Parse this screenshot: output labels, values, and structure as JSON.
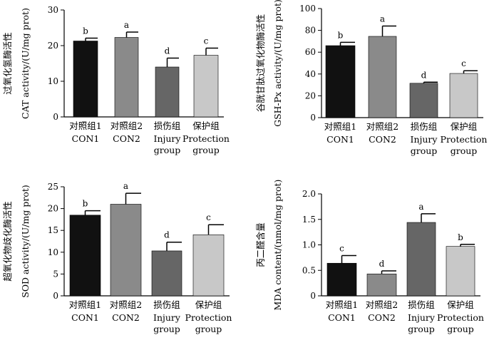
{
  "chart_data": [
    {
      "type": "bar",
      "title": "",
      "ylabel_cn": "过氧化氢酶活性",
      "ylabel_en": "CAT activity/(U/mg prot)",
      "ylim": [
        0,
        30
      ],
      "yticks": [
        "0",
        "10",
        "20",
        "30"
      ],
      "ytick_values": [
        0,
        10,
        20,
        30
      ],
      "categories": [
        {
          "cn": "对照组1",
          "en": [
            "CON1"
          ]
        },
        {
          "cn": "对照组2",
          "en": [
            "CON2"
          ]
        },
        {
          "cn": "损伤组",
          "en": [
            "Injury",
            "group"
          ]
        },
        {
          "cn": "保护组",
          "en": [
            "Protection",
            "group"
          ]
        }
      ],
      "values": [
        21.3,
        22.3,
        14.0,
        17.3
      ],
      "errors": [
        0.8,
        1.5,
        2.5,
        2.0
      ],
      "significance": [
        "b",
        "a",
        "d",
        "c"
      ],
      "colors": [
        "#111111",
        "#8a8a8a",
        "#666666",
        "#c8c8c8"
      ]
    },
    {
      "type": "bar",
      "title": "",
      "ylabel_cn": "谷胱甘肽过氧化物酶活性",
      "ylabel_en": "GSH-Px activity/(U/mg prot)",
      "ylim": [
        0,
        100
      ],
      "yticks": [
        "0",
        "20",
        "40",
        "60",
        "80",
        "100"
      ],
      "ytick_values": [
        0,
        20,
        40,
        60,
        80,
        100
      ],
      "categories": [
        {
          "cn": "对照组1",
          "en": [
            "CON1"
          ]
        },
        {
          "cn": "对照组2",
          "en": [
            "CON2"
          ]
        },
        {
          "cn": "损伤组",
          "en": [
            "Injury",
            "group"
          ]
        },
        {
          "cn": "保护组",
          "en": [
            "Protection",
            "group"
          ]
        }
      ],
      "values": [
        66.0,
        74.5,
        31.5,
        40.5
      ],
      "errors": [
        3.0,
        9.5,
        1.0,
        2.5
      ],
      "significance": [
        "b",
        "a",
        "d",
        "c"
      ],
      "colors": [
        "#111111",
        "#8a8a8a",
        "#666666",
        "#c8c8c8"
      ]
    },
    {
      "type": "bar",
      "title": "",
      "ylabel_cn": "超氧化物歧化酶活性",
      "ylabel_en": "SOD activity/(U/mg prot)",
      "ylim": [
        0,
        25
      ],
      "yticks": [
        "0",
        "5",
        "10",
        "15",
        "20",
        "25"
      ],
      "ytick_values": [
        0,
        5,
        10,
        15,
        20,
        25
      ],
      "categories": [
        {
          "cn": "对照组1",
          "en": [
            "CON1"
          ]
        },
        {
          "cn": "对照组2",
          "en": [
            "CON2"
          ]
        },
        {
          "cn": "损伤组",
          "en": [
            "Injury",
            "group"
          ]
        },
        {
          "cn": "保护组",
          "en": [
            "Protection",
            "group"
          ]
        }
      ],
      "values": [
        18.5,
        21.0,
        10.3,
        14.0
      ],
      "errors": [
        1.0,
        2.5,
        2.0,
        2.3
      ],
      "significance": [
        "b",
        "a",
        "d",
        "c"
      ],
      "colors": [
        "#111111",
        "#8a8a8a",
        "#666666",
        "#c8c8c8"
      ]
    },
    {
      "type": "bar",
      "title": "",
      "ylabel_cn": "丙二醛含量",
      "ylabel_en": "MDA content/(nmol/mg prot)",
      "ylim": [
        0,
        2.0
      ],
      "yticks": [
        "0",
        "0.5",
        "1.0",
        "1.5",
        "2.0"
      ],
      "ytick_values": [
        0,
        0.5,
        1.0,
        1.5,
        2.0
      ],
      "categories": [
        {
          "cn": "对照组1",
          "en": [
            "CON1"
          ]
        },
        {
          "cn": "对照组2",
          "en": [
            "CON2"
          ]
        },
        {
          "cn": "损伤组",
          "en": [
            "Injury",
            "group"
          ]
        },
        {
          "cn": "保护组",
          "en": [
            "Protection",
            "group"
          ]
        }
      ],
      "values": [
        0.64,
        0.43,
        1.44,
        0.97
      ],
      "errors": [
        0.15,
        0.06,
        0.17,
        0.04
      ],
      "significance": [
        "c",
        "d",
        "a",
        "b"
      ],
      "colors": [
        "#111111",
        "#8a8a8a",
        "#666666",
        "#c8c8c8"
      ]
    }
  ]
}
